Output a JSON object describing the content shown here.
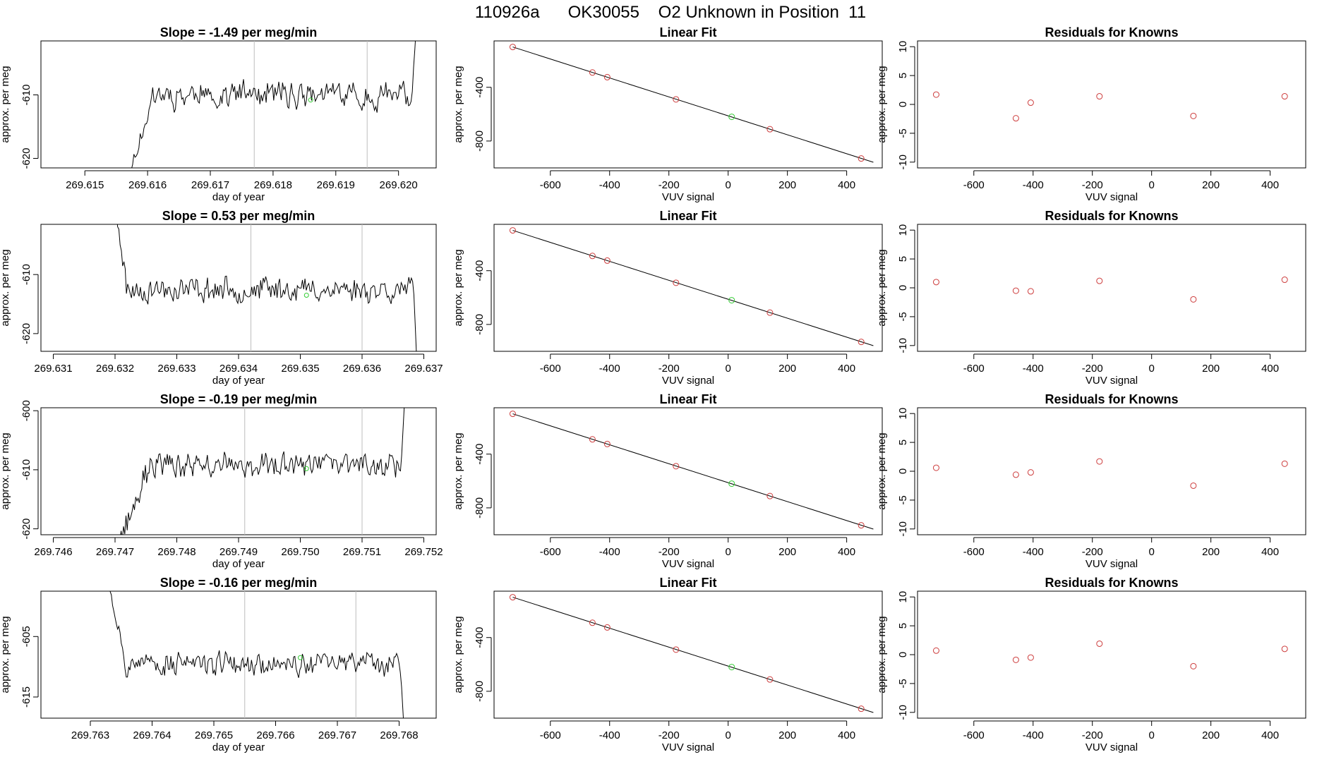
{
  "main_title": "110926a      OK30055    O2 Unknown in Position  11",
  "chart_data": [
    {
      "type": "line",
      "row": 0,
      "col": 0,
      "title": "Slope =  -1.49  per meg/min",
      "xlabel": "day of year",
      "ylabel": "approx. per meg",
      "xlim": [
        269.6143,
        269.6206
      ],
      "ylim": [
        -621.5,
        -601.5
      ],
      "xticks": [
        269.615,
        269.616,
        269.617,
        269.618,
        269.619,
        269.62
      ],
      "xticklabels": [
        "269.615",
        "269.616",
        "269.617",
        "269.618",
        "269.619",
        "269.620"
      ],
      "yticks": [
        -620,
        -610
      ],
      "yticklabels": [
        "-620",
        "-610"
      ],
      "vlines": [
        269.6177,
        269.6195
      ],
      "marker": {
        "x": 269.6186,
        "y": -610.8
      },
      "trace": {
        "x0": 269.6155,
        "x1": 269.6203,
        "n": 240,
        "seed": 11,
        "base": -610,
        "noise": 2.6,
        "start_y": -630,
        "ramp_end": 0.12,
        "end_y": -596,
        "end_frac": 0.985
      },
      "series": [
        {
          "name": "signal",
          "values": []
        }
      ]
    },
    {
      "type": "line",
      "row": 0,
      "col": 1,
      "title": "Linear Fit",
      "xlabel": "VUV signal",
      "ylabel": "approx. per meg",
      "xlim": [
        -790,
        520
      ],
      "ylim": [
        -1000,
        -55
      ],
      "xticks": [
        -600,
        -400,
        -200,
        0,
        200,
        400
      ],
      "xticklabels": [
        "-600",
        "-400",
        "-200",
        "0",
        "200",
        "400"
      ],
      "yticks": [
        -400,
        -800
      ],
      "yticklabels": [
        "-400",
        "-800"
      ],
      "fit_line": {
        "x": [
          -727,
          490
        ],
        "y": [
          -100,
          -958
        ]
      },
      "points": {
        "x": [
          -727,
          -458,
          -408,
          -176,
          141,
          449
        ],
        "y": [
          -100,
          -290,
          -325,
          -490,
          -712,
          -930
        ]
      },
      "unknown_point": {
        "x": 12,
        "y": -620
      }
    },
    {
      "type": "scatter",
      "row": 0,
      "col": 2,
      "title": "Residuals for Knowns",
      "xlabel": "VUV signal",
      "ylabel": "approx. per meg",
      "xlim": [
        -790,
        520
      ],
      "ylim": [
        -11,
        11
      ],
      "xticks": [
        -600,
        -400,
        -200,
        0,
        200,
        400
      ],
      "xticklabels": [
        "-600",
        "-400",
        "-200",
        "0",
        "200",
        "400"
      ],
      "yticks": [
        -10,
        -5,
        0,
        5,
        10
      ],
      "yticklabels": [
        "-10",
        "-5",
        "0",
        "5",
        "10"
      ],
      "points": {
        "x": [
          -727,
          -458,
          -408,
          -176,
          141,
          449
        ],
        "y": [
          1.7,
          -2.4,
          0.3,
          1.4,
          -2.0,
          1.4
        ]
      }
    },
    {
      "type": "line",
      "row": 1,
      "col": 0,
      "title": "Slope =  0.53  per meg/min",
      "xlabel": "day of year",
      "ylabel": "approx. per meg",
      "xlim": [
        269.6308,
        269.6372
      ],
      "ylim": [
        -623,
        -601.5
      ],
      "xticks": [
        269.631,
        269.632,
        269.633,
        269.634,
        269.635,
        269.636,
        269.637
      ],
      "xticklabels": [
        "269.631",
        "269.632",
        "269.633",
        "269.634",
        "269.635",
        "269.636",
        "269.637"
      ],
      "yticks": [
        -620,
        -610
      ],
      "yticklabels": [
        "-620",
        "-610"
      ],
      "vlines": [
        269.6342,
        269.636
      ],
      "marker": {
        "x": 269.6351,
        "y": -613.5
      },
      "trace": {
        "x0": 269.632,
        "x1": 269.6369,
        "n": 240,
        "seed": 23,
        "base": -612.5,
        "noise": 2.6,
        "start_y": -598,
        "ramp_end": 0.04,
        "end_y": -628,
        "end_frac": 0.985
      },
      "series": [
        {
          "name": "signal",
          "values": []
        }
      ]
    },
    {
      "type": "line",
      "row": 1,
      "col": 1,
      "title": "Linear Fit",
      "xlabel": "VUV signal",
      "ylabel": "approx. per meg",
      "xlim": [
        -790,
        520
      ],
      "ylim": [
        -1000,
        -55
      ],
      "xticks": [
        -600,
        -400,
        -200,
        0,
        200,
        400
      ],
      "xticklabels": [
        "-600",
        "-400",
        "-200",
        "0",
        "200",
        "400"
      ],
      "yticks": [
        -400,
        -800
      ],
      "yticklabels": [
        "-400",
        "-800"
      ],
      "fit_line": {
        "x": [
          -727,
          490
        ],
        "y": [
          -100,
          -958
        ]
      },
      "points": {
        "x": [
          -727,
          -458,
          -408,
          -176,
          141,
          449
        ],
        "y": [
          -100,
          -290,
          -325,
          -490,
          -712,
          -930
        ]
      },
      "unknown_point": {
        "x": 12,
        "y": -620
      }
    },
    {
      "type": "scatter",
      "row": 1,
      "col": 2,
      "title": "Residuals for Knowns",
      "xlabel": "VUV signal",
      "ylabel": "approx. per meg",
      "xlim": [
        -790,
        520
      ],
      "ylim": [
        -11,
        11
      ],
      "xticks": [
        -600,
        -400,
        -200,
        0,
        200,
        400
      ],
      "xticklabels": [
        "-600",
        "-400",
        "-200",
        "0",
        "200",
        "400"
      ],
      "yticks": [
        -10,
        -5,
        0,
        5,
        10
      ],
      "yticklabels": [
        "-10",
        "-5",
        "0",
        "5",
        "10"
      ],
      "points": {
        "x": [
          -727,
          -458,
          -408,
          -176,
          141,
          449
        ],
        "y": [
          1.0,
          -0.5,
          -0.6,
          1.2,
          -2.0,
          1.4
        ]
      }
    },
    {
      "type": "line",
      "row": 2,
      "col": 0,
      "title": "Slope =  -0.19  per meg/min",
      "xlabel": "day of year",
      "ylabel": "approx. per meg",
      "xlim": [
        269.7458,
        269.7522
      ],
      "ylim": [
        -621,
        -599.5
      ],
      "xticks": [
        269.746,
        269.747,
        269.748,
        269.749,
        269.75,
        269.751,
        269.752
      ],
      "xticklabels": [
        "269.746",
        "269.747",
        "269.748",
        "269.749",
        "269.750",
        "269.751",
        "269.752"
      ],
      "yticks": [
        -620,
        -610,
        -600
      ],
      "yticklabels": [
        "-620",
        "-610",
        "-600"
      ],
      "vlines": [
        269.7491,
        269.751
      ],
      "marker": {
        "x": 269.7501,
        "y": -609.8
      },
      "trace": {
        "x0": 269.747,
        "x1": 269.7517,
        "n": 240,
        "seed": 37,
        "base": -609.2,
        "noise": 2.5,
        "start_y": -624,
        "ramp_end": 0.12,
        "end_y": -596,
        "end_frac": 0.985
      },
      "series": [
        {
          "name": "signal",
          "values": []
        }
      ]
    },
    {
      "type": "line",
      "row": 2,
      "col": 1,
      "title": "Linear Fit",
      "xlabel": "VUV signal",
      "ylabel": "approx. per meg",
      "xlim": [
        -790,
        520
      ],
      "ylim": [
        -1000,
        -55
      ],
      "xticks": [
        -600,
        -400,
        -200,
        0,
        200,
        400
      ],
      "xticklabels": [
        "-600",
        "-400",
        "-200",
        "0",
        "200",
        "400"
      ],
      "yticks": [
        -400,
        -800
      ],
      "yticklabels": [
        "-400",
        "-800"
      ],
      "fit_line": {
        "x": [
          -727,
          490
        ],
        "y": [
          -100,
          -958
        ]
      },
      "points": {
        "x": [
          -727,
          -458,
          -408,
          -176,
          141,
          449
        ],
        "y": [
          -100,
          -290,
          -325,
          -490,
          -712,
          -930
        ]
      },
      "unknown_point": {
        "x": 12,
        "y": -620
      }
    },
    {
      "type": "scatter",
      "row": 2,
      "col": 2,
      "title": "Residuals for Knowns",
      "xlabel": "VUV signal",
      "ylabel": "approx. per meg",
      "xlim": [
        -790,
        520
      ],
      "ylim": [
        -11,
        11
      ],
      "xticks": [
        -600,
        -400,
        -200,
        0,
        200,
        400
      ],
      "xticklabels": [
        "-600",
        "-400",
        "-200",
        "0",
        "200",
        "400"
      ],
      "yticks": [
        -10,
        -5,
        0,
        5,
        10
      ],
      "yticklabels": [
        "-10",
        "-5",
        "0",
        "5",
        "10"
      ],
      "points": {
        "x": [
          -727,
          -458,
          -408,
          -176,
          141,
          449
        ],
        "y": [
          0.6,
          -0.6,
          -0.2,
          1.7,
          -2.5,
          1.3
        ]
      }
    },
    {
      "type": "line",
      "row": 3,
      "col": 0,
      "title": "Slope =  -0.16  per meg/min",
      "xlabel": "day of year",
      "ylabel": "approx. per meg",
      "xlim": [
        269.7622,
        269.7686
      ],
      "ylim": [
        -618.5,
        -597.5
      ],
      "xticks": [
        269.763,
        269.764,
        269.765,
        269.766,
        269.767,
        269.768
      ],
      "xticklabels": [
        "269.763",
        "269.764",
        "269.765",
        "269.766",
        "269.767",
        "269.768"
      ],
      "yticks": [
        -615,
        -605
      ],
      "yticklabels": [
        "-615",
        "-605"
      ],
      "vlines": [
        269.7655,
        269.7673
      ],
      "marker": {
        "x": 269.7664,
        "y": -608.5
      },
      "trace": {
        "x0": 269.7633,
        "x1": 269.7681,
        "n": 240,
        "seed": 53,
        "base": -609.5,
        "noise": 2.4,
        "start_y": -596,
        "ramp_end": 0.06,
        "end_y": -625,
        "end_frac": 0.985
      },
      "series": [
        {
          "name": "signal",
          "values": []
        }
      ]
    },
    {
      "type": "line",
      "row": 3,
      "col": 1,
      "title": "Linear Fit",
      "xlabel": "VUV signal",
      "ylabel": "approx. per meg",
      "xlim": [
        -790,
        520
      ],
      "ylim": [
        -1000,
        -55
      ],
      "xticks": [
        -600,
        -400,
        -200,
        0,
        200,
        400
      ],
      "xticklabels": [
        "-600",
        "-400",
        "-200",
        "0",
        "200",
        "400"
      ],
      "yticks": [
        -400,
        -800
      ],
      "yticklabels": [
        "-400",
        "-800"
      ],
      "fit_line": {
        "x": [
          -727,
          490
        ],
        "y": [
          -100,
          -958
        ]
      },
      "points": {
        "x": [
          -727,
          -458,
          -408,
          -176,
          141,
          449
        ],
        "y": [
          -100,
          -290,
          -325,
          -490,
          -712,
          -930
        ]
      },
      "unknown_point": {
        "x": 12,
        "y": -620
      }
    },
    {
      "type": "scatter",
      "row": 3,
      "col": 2,
      "title": "Residuals for Knowns",
      "xlabel": "VUV signal",
      "ylabel": "approx. per meg",
      "xlim": [
        -790,
        520
      ],
      "ylim": [
        -11,
        11
      ],
      "xticks": [
        -600,
        -400,
        -200,
        0,
        200,
        400
      ],
      "xticklabels": [
        "-600",
        "-400",
        "-200",
        "0",
        "200",
        "400"
      ],
      "yticks": [
        -10,
        -5,
        0,
        5,
        10
      ],
      "yticklabels": [
        "-10",
        "-5",
        "0",
        "5",
        "10"
      ],
      "points": {
        "x": [
          -727,
          -458,
          -408,
          -176,
          141,
          449
        ],
        "y": [
          0.7,
          -0.9,
          -0.5,
          1.9,
          -2.0,
          1.0
        ]
      }
    }
  ],
  "colors": {
    "known_point": "#cd3c3c",
    "unknown_point": "#33cc33",
    "trace": "#000000",
    "vline": "#bdbdbd"
  }
}
